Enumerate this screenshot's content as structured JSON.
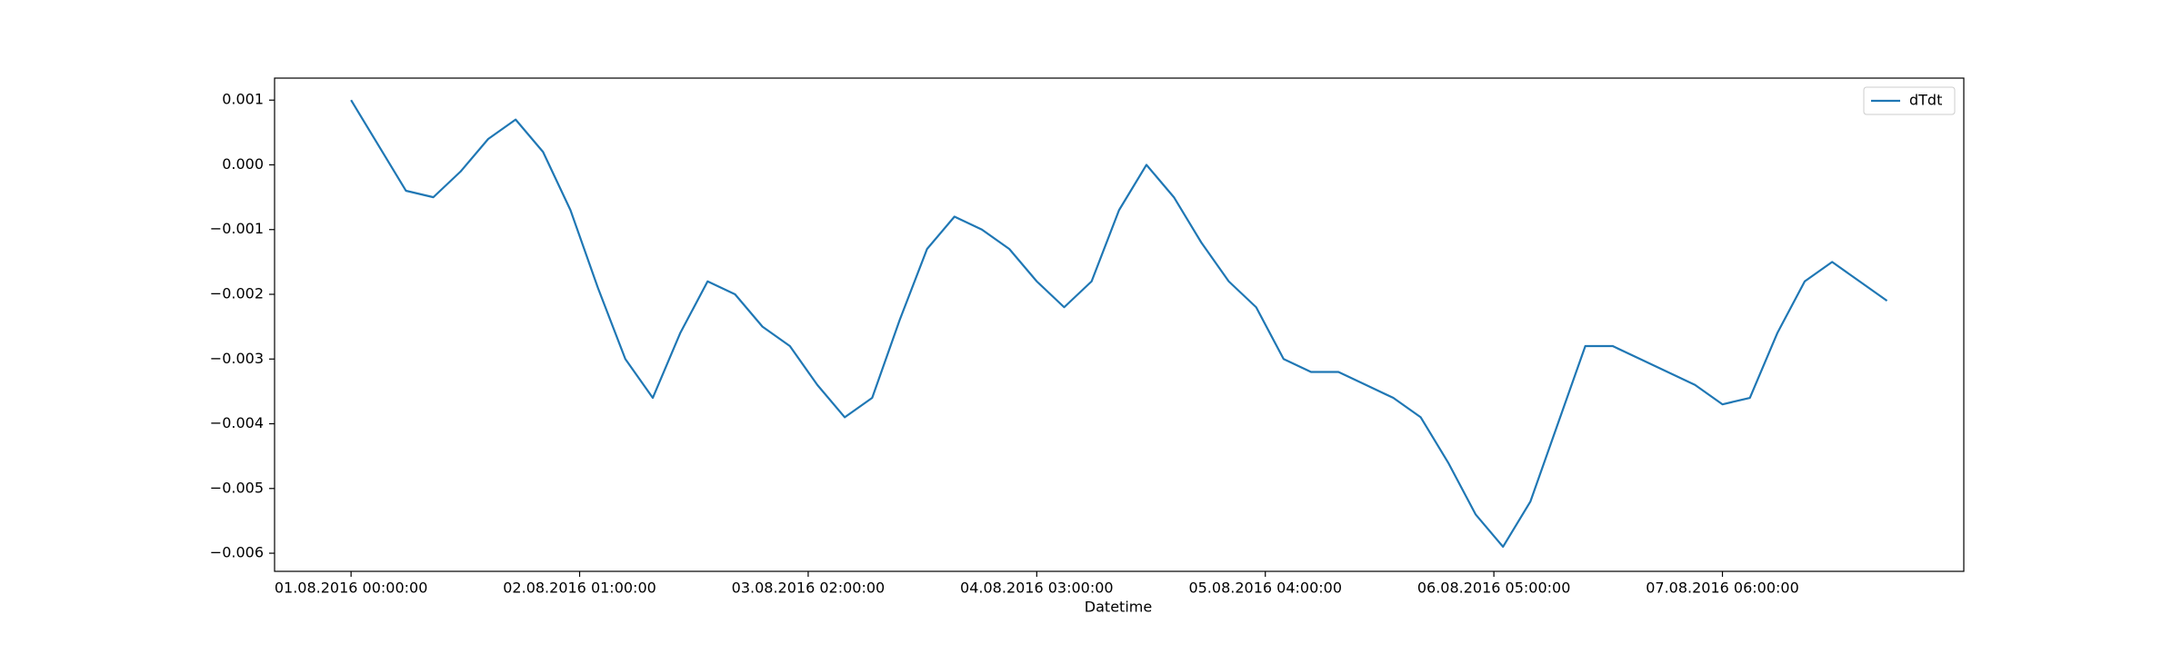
{
  "chart_data": {
    "type": "line",
    "xlabel": "Datetime",
    "x": [
      "01.08.2016 00:00:00",
      "01.08.2016 03:00:00",
      "01.08.2016 06:00:00",
      "01.08.2016 09:00:00",
      "01.08.2016 12:00:00",
      "01.08.2016 15:00:00",
      "01.08.2016 18:00:00",
      "01.08.2016 21:00:00",
      "02.08.2016 00:00:00",
      "02.08.2016 03:00:00",
      "02.08.2016 06:00:00",
      "02.08.2016 09:00:00",
      "02.08.2016 12:00:00",
      "02.08.2016 15:00:00",
      "02.08.2016 18:00:00",
      "02.08.2016 21:00:00",
      "03.08.2016 00:00:00",
      "03.08.2016 03:00:00",
      "03.08.2016 06:00:00",
      "03.08.2016 09:00:00",
      "03.08.2016 12:00:00",
      "03.08.2016 15:00:00",
      "03.08.2016 18:00:00",
      "03.08.2016 21:00:00",
      "04.08.2016 00:00:00",
      "04.08.2016 03:00:00",
      "04.08.2016 06:00:00",
      "04.08.2016 09:00:00",
      "04.08.2016 12:00:00",
      "04.08.2016 15:00:00",
      "04.08.2016 18:00:00",
      "04.08.2016 21:00:00",
      "05.08.2016 00:00:00",
      "05.08.2016 03:00:00",
      "05.08.2016 06:00:00",
      "05.08.2016 09:00:00",
      "05.08.2016 12:00:00",
      "05.08.2016 15:00:00",
      "05.08.2016 18:00:00",
      "05.08.2016 21:00:00",
      "06.08.2016 00:00:00",
      "06.08.2016 03:00:00",
      "06.08.2016 06:00:00",
      "06.08.2016 09:00:00",
      "06.08.2016 12:00:00",
      "06.08.2016 15:00:00",
      "06.08.2016 18:00:00",
      "06.08.2016 21:00:00",
      "07.08.2016 00:00:00",
      "07.08.2016 03:00:00",
      "07.08.2016 06:00:00",
      "07.08.2016 09:00:00",
      "07.08.2016 12:00:00",
      "07.08.2016 15:00:00",
      "07.08.2016 18:00:00",
      "07.08.2016 21:00:00",
      "08.08.2016 00:00:00"
    ],
    "series": [
      {
        "name": "dTdt",
        "color": "#1f77b4",
        "values": [
          0.001,
          0.0003,
          -0.0004,
          -0.0005,
          -0.0001,
          0.0004,
          0.0007,
          0.0002,
          -0.0007,
          -0.0019,
          -0.003,
          -0.0036,
          -0.0026,
          -0.0018,
          -0.002,
          -0.0025,
          -0.0028,
          -0.0034,
          -0.0039,
          -0.0036,
          -0.0024,
          -0.0013,
          -0.0008,
          -0.001,
          -0.0013,
          -0.0018,
          -0.0022,
          -0.0018,
          -0.0007,
          0.0,
          -0.0005,
          -0.0012,
          -0.0018,
          -0.0022,
          -0.003,
          -0.0032,
          -0.0032,
          -0.0034,
          -0.0036,
          -0.0039,
          -0.0046,
          -0.0054,
          -0.0059,
          -0.0052,
          -0.004,
          -0.0028,
          -0.0028,
          -0.003,
          -0.0032,
          -0.0034,
          -0.0037,
          -0.0036,
          -0.0026,
          -0.0018,
          -0.0015,
          -0.0018,
          -0.0021
        ]
      }
    ],
    "xlim": [
      "31.07.2016 15:38:00",
      "08.08.2016 08:24:00"
    ],
    "xticks": [
      "01.08.2016 00:00:00",
      "02.08.2016 01:00:00",
      "03.08.2016 02:00:00",
      "04.08.2016 03:00:00",
      "05.08.2016 04:00:00",
      "06.08.2016 05:00:00",
      "07.08.2016 06:00:00"
    ],
    "ylim": [
      -0.00628,
      0.00134
    ],
    "yticks": [
      {
        "value": 0.001,
        "label": "0.001"
      },
      {
        "value": 0,
        "label": "0.000"
      },
      {
        "value": -0.001,
        "label": "−0.001"
      },
      {
        "value": -0.002,
        "label": "−0.002"
      },
      {
        "value": -0.003,
        "label": "−0.003"
      },
      {
        "value": -0.004,
        "label": "−0.004"
      },
      {
        "value": -0.005,
        "label": "−0.005"
      },
      {
        "value": -0.006,
        "label": "−0.006"
      }
    ],
    "legend": "upper right"
  }
}
